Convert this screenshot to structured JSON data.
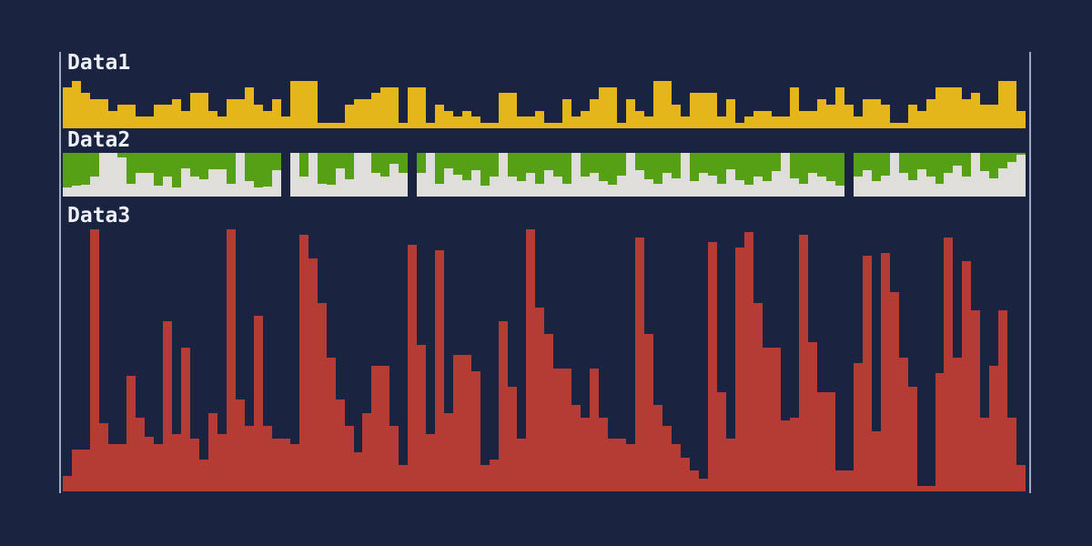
{
  "page": {
    "background_color": "#1a2440",
    "axis_color": "#b6c2d8",
    "label_color": "#edf1f7"
  },
  "chart_data": [
    {
      "type": "bar",
      "title": "Data1",
      "color": "#e4b619",
      "scale_max": 8,
      "legend_position": "top-left",
      "grid": false,
      "values": [
        7,
        8,
        6,
        5,
        5,
        3,
        4,
        4,
        2,
        2,
        4,
        4,
        5,
        3,
        6,
        6,
        3,
        2,
        5,
        5,
        7,
        4,
        3,
        5,
        2,
        8,
        8,
        8,
        1,
        1,
        1,
        4,
        5,
        5,
        6,
        7,
        7,
        1,
        7,
        7,
        1,
        4,
        3,
        2,
        3,
        2,
        1,
        1,
        6,
        6,
        2,
        2,
        3,
        1,
        1,
        5,
        2,
        3,
        5,
        7,
        7,
        1,
        5,
        3,
        2,
        8,
        8,
        4,
        2,
        6,
        6,
        6,
        2,
        5,
        1,
        2,
        3,
        3,
        2,
        2,
        7,
        3,
        3,
        5,
        4,
        7,
        4,
        2,
        5,
        5,
        4,
        1,
        1,
        4,
        3,
        5,
        7,
        7,
        7,
        5,
        6,
        4,
        4,
        8,
        8,
        3
      ]
    },
    {
      "type": "bar",
      "title": "Data2",
      "style": "filled-bg",
      "color_bar": "#dfdeda",
      "color_bg": "#55a014",
      "scale_max": 100,
      "legend_position": "top-left",
      "grid": false,
      "gap_value": 0,
      "values": [
        20,
        25,
        28,
        45,
        100,
        100,
        90,
        30,
        55,
        55,
        25,
        45,
        20,
        65,
        45,
        40,
        62,
        62,
        30,
        100,
        35,
        20,
        22,
        60,
        0,
        100,
        45,
        100,
        30,
        28,
        65,
        40,
        100,
        100,
        55,
        45,
        75,
        55,
        0,
        55,
        100,
        30,
        65,
        50,
        38,
        60,
        25,
        45,
        100,
        45,
        35,
        55,
        30,
        60,
        45,
        30,
        100,
        45,
        55,
        35,
        28,
        48,
        100,
        60,
        40,
        30,
        55,
        42,
        100,
        35,
        55,
        48,
        30,
        62,
        38,
        28,
        45,
        35,
        58,
        100,
        42,
        30,
        55,
        45,
        35,
        25,
        0,
        45,
        60,
        35,
        48,
        100,
        55,
        38,
        62,
        45,
        30,
        55,
        70,
        45,
        100,
        58,
        42,
        65,
        80,
        95
      ]
    },
    {
      "type": "bar",
      "title": "Data3",
      "color": "#b43c35",
      "scale_max": 100,
      "legend_position": "top-left",
      "grid": false,
      "values": [
        6,
        16,
        16,
        100,
        26,
        18,
        18,
        44,
        28,
        21,
        18,
        65,
        22,
        55,
        20,
        12,
        30,
        22,
        100,
        35,
        25,
        67,
        25,
        20,
        20,
        18,
        98,
        89,
        72,
        51,
        35,
        25,
        15,
        30,
        48,
        48,
        25,
        10,
        94,
        56,
        22,
        92,
        30,
        52,
        52,
        46,
        10,
        12,
        65,
        40,
        20,
        100,
        70,
        60,
        47,
        47,
        33,
        28,
        47,
        28,
        20,
        20,
        18,
        97,
        60,
        33,
        25,
        18,
        13,
        8,
        5,
        95,
        38,
        20,
        93,
        99,
        72,
        55,
        55,
        27,
        28,
        98,
        57,
        38,
        38,
        8,
        8,
        49,
        90,
        23,
        91,
        76,
        51,
        40,
        2,
        2,
        45,
        97,
        51,
        88,
        69,
        28,
        48,
        69,
        28,
        10
      ]
    }
  ]
}
